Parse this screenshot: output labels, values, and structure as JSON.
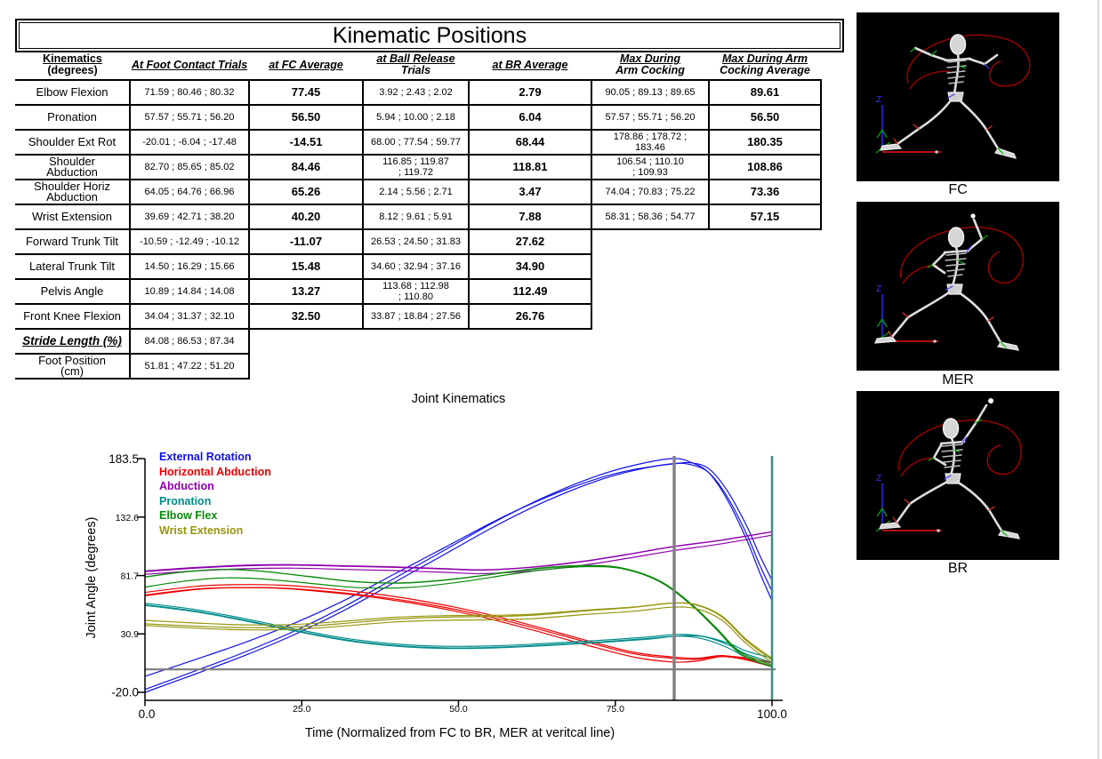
{
  "table": {
    "title": "Kinematic Positions",
    "headers": [
      {
        "line1": "Kinematics",
        "line2": "(degrees)"
      },
      {
        "line1": "At Foot Contact Trials",
        "line2": ""
      },
      {
        "line1": "at FC Average",
        "line2": ""
      },
      {
        "line1": "at Ball Release",
        "line2": "Trials"
      },
      {
        "line1": "at BR Average",
        "line2": ""
      },
      {
        "line1": "Max During",
        "line2": "Arm Cocking"
      },
      {
        "line1": "Max During Arm",
        "line2": "Cocking Average"
      }
    ],
    "rows": [
      {
        "label": "Elbow Flexion",
        "fc_trials": "71.59 ; 80.46 ; 80.32",
        "fc_avg": "77.45",
        "br_trials": "3.92 ; 2.43 ; 2.02",
        "br_avg": "2.79",
        "max_trials": "90.05 ; 89.13 ; 89.65",
        "max_avg": "89.61"
      },
      {
        "label": "Pronation",
        "fc_trials": "57.57 ; 55.71 ; 56.20",
        "fc_avg": "56.50",
        "br_trials": "5.94 ; 10.00 ; 2.18",
        "br_avg": "6.04",
        "max_trials": "57.57 ; 55.71 ; 56.20",
        "max_avg": "56.50"
      },
      {
        "label": "Shoulder Ext Rot",
        "fc_trials": "-20.01 ; -6.04 ; -17.48",
        "fc_avg": "-14.51",
        "br_trials": "68.00 ; 77.54 ; 59.77",
        "br_avg": "68.44",
        "max_trials": "178.86 ; 178.72 ;\n183.46",
        "max_avg": "180.35"
      },
      {
        "label": "Shoulder\nAbduction",
        "fc_trials": "82.70 ; 85.65 ; 85.02",
        "fc_avg": "84.46",
        "br_trials": "116.85 ; 119.87\n; 119.72",
        "br_avg": "118.81",
        "max_trials": "106.54 ; 110.10\n; 109.93",
        "max_avg": "108.86"
      },
      {
        "label": "Shoulder Horiz\nAbduction",
        "fc_trials": "64.05 ; 64.76 ; 66.96",
        "fc_avg": "65.26",
        "br_trials": "2.14 ; 5.56 ; 2.71",
        "br_avg": "3.47",
        "max_trials": "74.04 ; 70.83 ; 75.22",
        "max_avg": "73.36"
      },
      {
        "label": "Wrist Extension",
        "fc_trials": "39.69 ; 42.71 ; 38.20",
        "fc_avg": "40.20",
        "br_trials": "8.12 ; 9.61 ; 5.91",
        "br_avg": "7.88",
        "max_trials": "58.31 ; 58.36 ; 54.77",
        "max_avg": "57.15"
      },
      {
        "label": "Forward Trunk Tilt",
        "fc_trials": "-10.59 ; -12.49 ; -10.12",
        "fc_avg": "-11.07",
        "br_trials": "26.53 ; 24.50 ; 31.83",
        "br_avg": "27.62"
      },
      {
        "label": "Lateral Trunk Tilt",
        "fc_trials": "14.50 ; 16.29 ; 15.66",
        "fc_avg": "15.48",
        "br_trials": "34.60 ; 32.94 ; 37.16",
        "br_avg": "34.90"
      },
      {
        "label": "Pelvis Angle",
        "fc_trials": "10.89 ; 14.84 ; 14.08",
        "fc_avg": "13.27",
        "br_trials": "113.68 ; 112.98\n; 110.80",
        "br_avg": "112.49"
      },
      {
        "label": "Front Knee Flexion",
        "fc_trials": "34.04 ; 31.37 ; 32.10",
        "fc_avg": "32.50",
        "br_trials": "33.87 ; 18.84 ; 27.56",
        "br_avg": "26.76"
      },
      {
        "label": "Stride Length (%)",
        "emphasis": true,
        "fc_trials": "84.08 ; 86.53 ; 87.34"
      },
      {
        "label": "Foot Position\n(cm)",
        "fc_trials": "51.81 ; 47.22 ; 51.20"
      }
    ]
  },
  "images": [
    {
      "label": "FC"
    },
    {
      "label": "MER"
    },
    {
      "label": "BR"
    }
  ],
  "chart_data": {
    "type": "line",
    "title": "Joint Kinematics",
    "xlabel": "Time (Normalized from FC to BR, MER at veritcal line)",
    "ylabel": "Joint Angle (degrees)",
    "xticks": [
      "0.0",
      "25.0",
      "50.0",
      "75.0",
      "100.0"
    ],
    "yticks": [
      "183.5",
      "132.6",
      "81.7",
      "30.9",
      "-20.0"
    ],
    "xlim": [
      0,
      100
    ],
    "ylim": [
      -20.0,
      183.5
    ],
    "grid": false,
    "legend_position": "top-left",
    "mer_vertical_line_x": 84.4,
    "zero_reference_line_y": 0,
    "end_vertical_line_x": 100,
    "reference_line_color": "#828282",
    "end_line_color": "#3e8b7e",
    "trials_per_series": 3,
    "series": [
      {
        "name": "External Rotation",
        "color": "#1010e8",
        "fc": [
          -20.01,
          -6.04,
          -17.48
        ],
        "max": [
          178.86,
          178.72,
          183.46
        ],
        "br": [
          68.0,
          77.54,
          59.77
        ],
        "mean": [
          [
            0,
            -14.5
          ],
          [
            8,
            1
          ],
          [
            16,
            17
          ],
          [
            24,
            35
          ],
          [
            32,
            56
          ],
          [
            40,
            80
          ],
          [
            48,
            104
          ],
          [
            56,
            128
          ],
          [
            64,
            149
          ],
          [
            72,
            166
          ],
          [
            78,
            175
          ],
          [
            84,
            180.4
          ],
          [
            87,
            179.5
          ],
          [
            90,
            172
          ],
          [
            93,
            150
          ],
          [
            96,
            118
          ],
          [
            98,
            92
          ],
          [
            100,
            68.4
          ]
        ]
      },
      {
        "name": "Horizontal Abduction",
        "color": "#ee0000",
        "fc": [
          64.05,
          64.76,
          66.96
        ],
        "max": [
          74.04,
          70.83,
          75.22
        ],
        "br": [
          2.14,
          5.56,
          2.71
        ],
        "mean": [
          [
            0,
            65.3
          ],
          [
            8,
            70.5
          ],
          [
            14,
            72
          ],
          [
            22,
            71.5
          ],
          [
            30,
            68
          ],
          [
            38,
            63
          ],
          [
            46,
            56
          ],
          [
            54,
            47
          ],
          [
            62,
            36
          ],
          [
            70,
            24
          ],
          [
            78,
            13
          ],
          [
            84,
            9
          ],
          [
            88,
            8.5
          ],
          [
            92,
            11.5
          ],
          [
            96,
            9
          ],
          [
            100,
            3.5
          ]
        ]
      },
      {
        "name": "Abduction",
        "color": "#8f00ad",
        "fc": [
          82.7,
          85.65,
          85.02
        ],
        "max": [
          106.54,
          110.1,
          109.93
        ],
        "br": [
          116.85,
          119.87,
          119.72
        ],
        "mean": [
          [
            0,
            84.5
          ],
          [
            8,
            87.5
          ],
          [
            16,
            89.5
          ],
          [
            24,
            90
          ],
          [
            32,
            89
          ],
          [
            40,
            88
          ],
          [
            48,
            86.5
          ],
          [
            54,
            85.5
          ],
          [
            62,
            88
          ],
          [
            70,
            93
          ],
          [
            77,
            99
          ],
          [
            84,
            105.5
          ],
          [
            92,
            111.5
          ],
          [
            100,
            118.8
          ]
        ]
      },
      {
        "name": "Pronation",
        "color": "#008b8b",
        "fc": [
          57.57,
          55.71,
          56.2
        ],
        "max": [
          57.57,
          55.71,
          56.2
        ],
        "br": [
          5.94,
          10.0,
          2.18
        ],
        "mean": [
          [
            0,
            56.5
          ],
          [
            8,
            51
          ],
          [
            16,
            43
          ],
          [
            24,
            34
          ],
          [
            32,
            26
          ],
          [
            40,
            21
          ],
          [
            48,
            19
          ],
          [
            56,
            19.5
          ],
          [
            64,
            21.5
          ],
          [
            72,
            24
          ],
          [
            80,
            27
          ],
          [
            85,
            29.5
          ],
          [
            89,
            28
          ],
          [
            93,
            21
          ],
          [
            96,
            13
          ],
          [
            100,
            6
          ]
        ]
      },
      {
        "name": "Elbow Flex",
        "color": "#0a8a0a",
        "fc": [
          71.59,
          80.46,
          80.32
        ],
        "max": [
          90.05,
          89.13,
          89.65
        ],
        "br": [
          3.92,
          2.43,
          2.02
        ],
        "mean": [
          [
            0,
            77.5
          ],
          [
            6,
            82
          ],
          [
            12,
            84.5
          ],
          [
            18,
            83.5
          ],
          [
            26,
            79
          ],
          [
            34,
            74.5
          ],
          [
            42,
            74
          ],
          [
            50,
            78
          ],
          [
            58,
            84
          ],
          [
            64,
            88
          ],
          [
            70,
            90
          ],
          [
            76,
            88
          ],
          [
            82,
            77
          ],
          [
            87,
            57
          ],
          [
            91,
            36
          ],
          [
            95,
            14
          ],
          [
            100,
            2.8
          ]
        ]
      },
      {
        "name": "Wrist Extension",
        "color": "#96960f",
        "fc": [
          39.69,
          42.71,
          38.2
        ],
        "max": [
          58.31,
          58.36,
          54.77
        ],
        "br": [
          8.12,
          9.61,
          5.91
        ],
        "mean": [
          [
            0,
            40.2
          ],
          [
            8,
            38
          ],
          [
            16,
            36.5
          ],
          [
            24,
            37
          ],
          [
            32,
            40
          ],
          [
            40,
            43.5
          ],
          [
            48,
            45
          ],
          [
            56,
            45.5
          ],
          [
            62,
            46.5
          ],
          [
            70,
            50
          ],
          [
            78,
            53
          ],
          [
            84,
            56.5
          ],
          [
            88,
            55
          ],
          [
            92,
            45
          ],
          [
            96,
            24
          ],
          [
            100,
            7.9
          ]
        ]
      }
    ]
  }
}
